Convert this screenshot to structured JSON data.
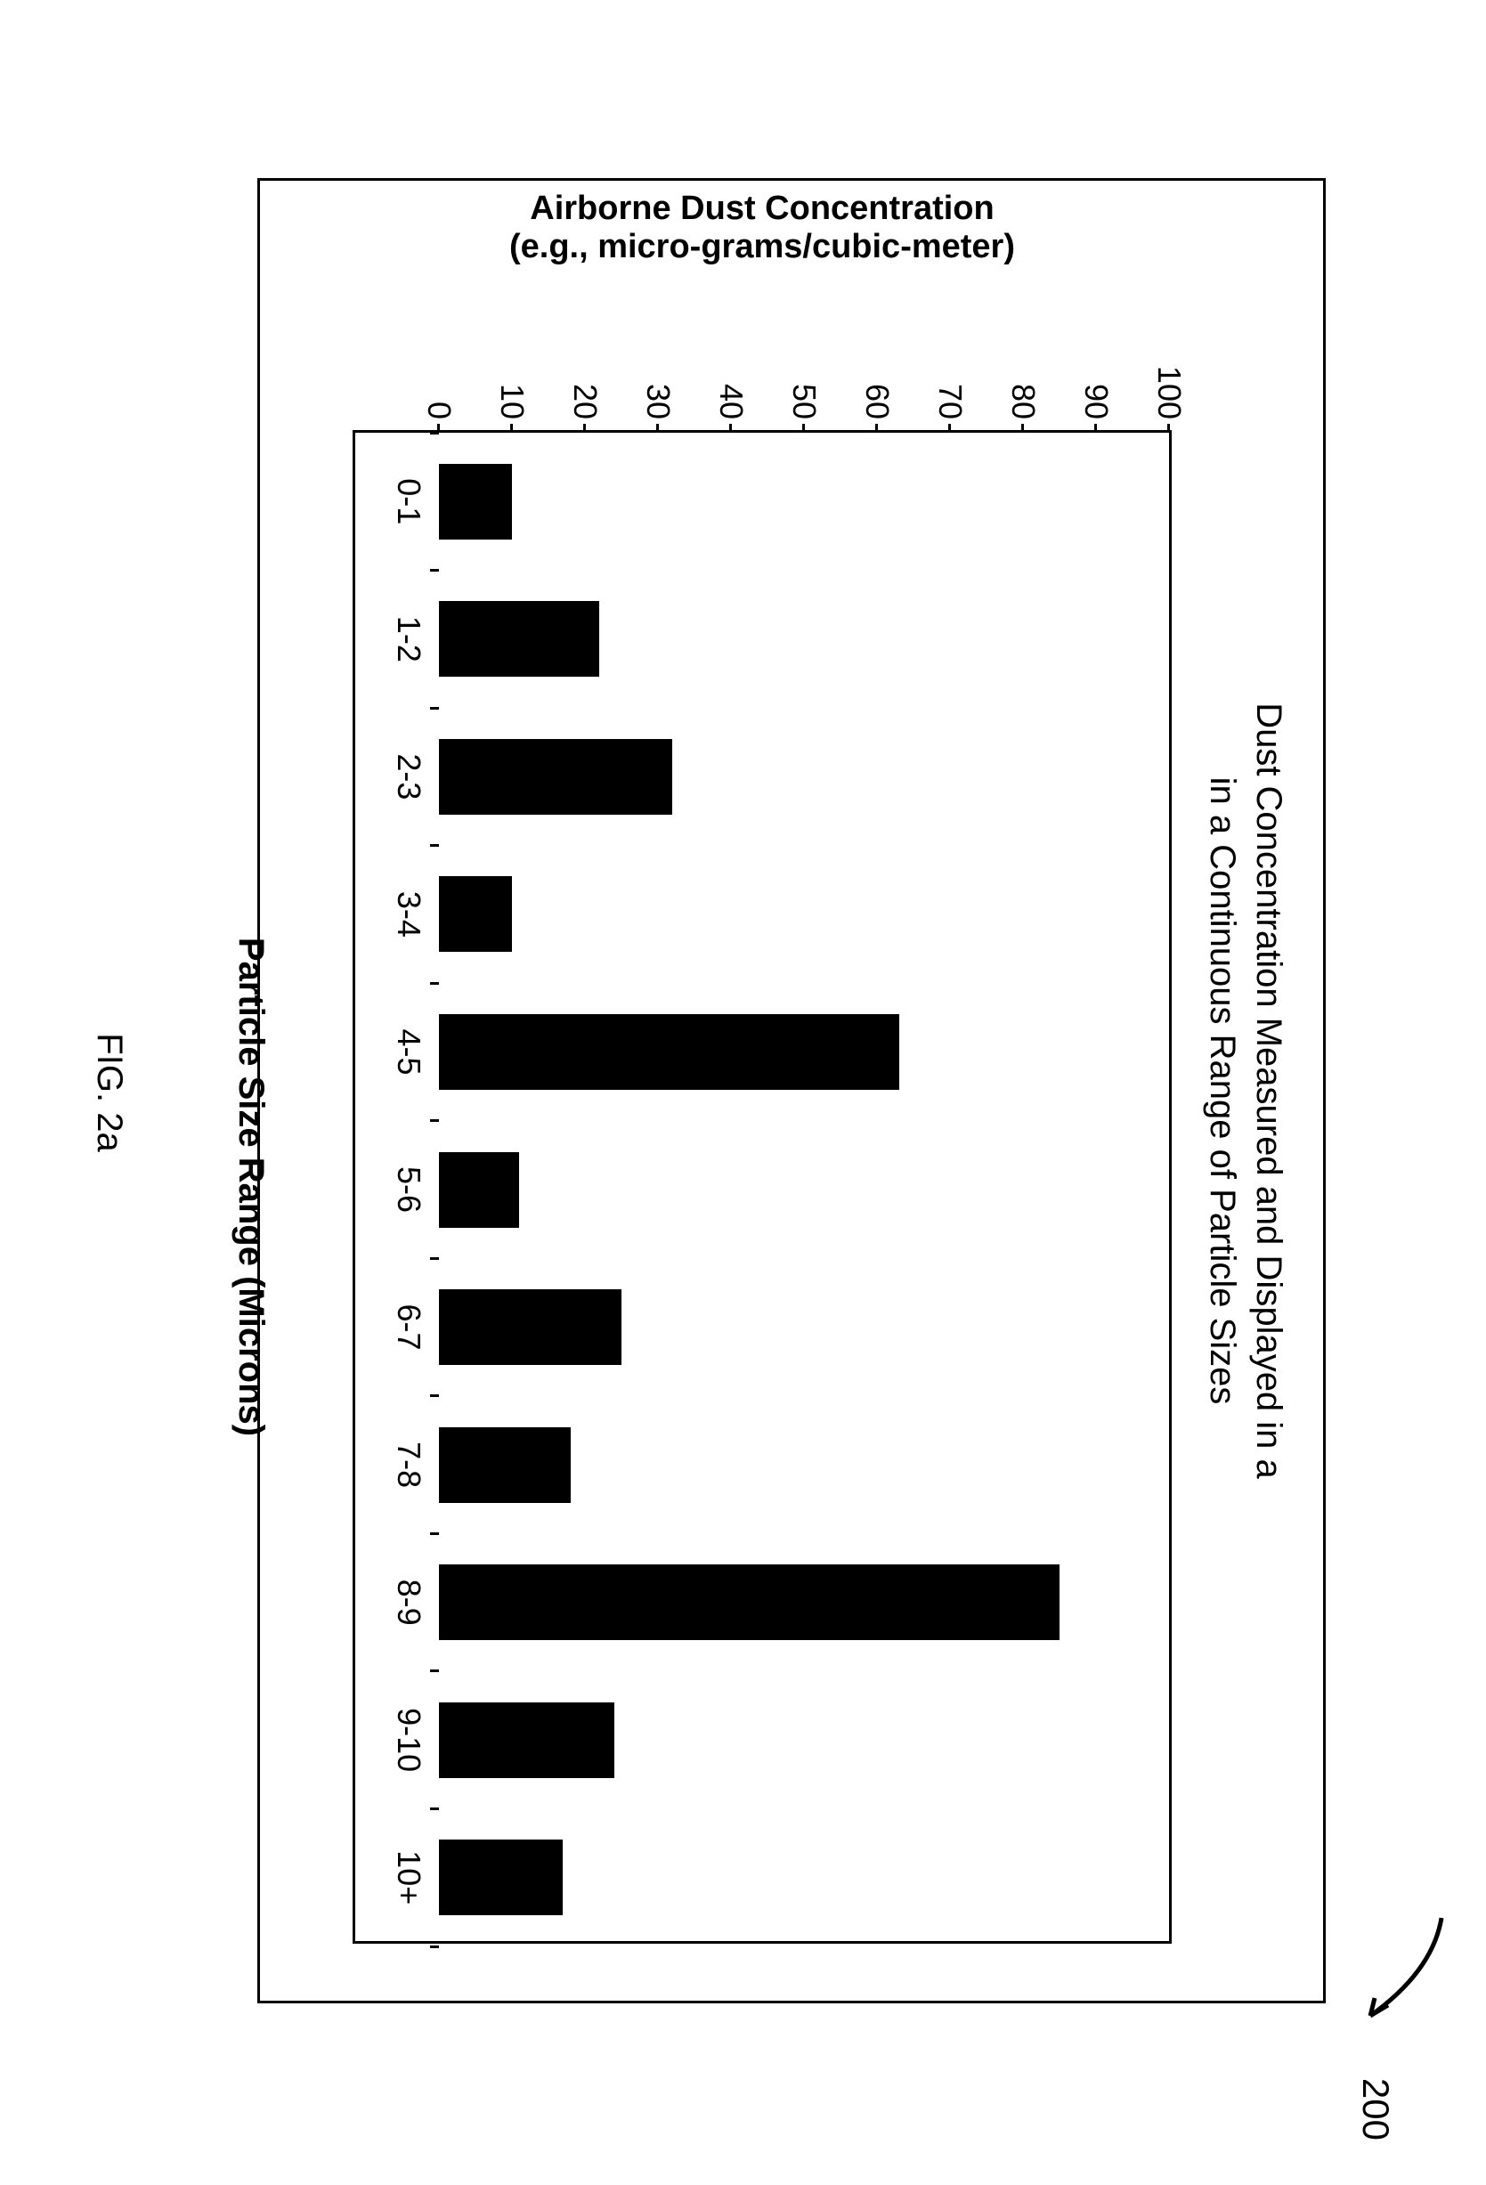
{
  "figure_label": "200",
  "caption": "FIG. 2a",
  "chart": {
    "type": "bar",
    "title_line1": "Dust Concentration Measured and Displayed in a",
    "title_line2": "in a Continuous Range of Particle Sizes",
    "x_axis_label": "Particle Size Range (Microns)",
    "y_axis_label_line1": "Airborne Dust Concentration",
    "y_axis_label_line2": "(e.g., micro-grams/cubic-meter)",
    "categories": [
      "0-1",
      "1-2",
      "2-3",
      "3-4",
      "4-5",
      "5-6",
      "6-7",
      "7-8",
      "8-9",
      "9-10",
      "10+"
    ],
    "values": [
      10,
      22,
      32,
      10,
      63,
      11,
      25,
      18,
      85,
      24,
      17
    ],
    "ylim_min": 0,
    "ylim_max": 100,
    "ytick_step": 10,
    "y_ticks": [
      0,
      10,
      20,
      30,
      40,
      50,
      60,
      70,
      80,
      90,
      100
    ],
    "bar_color": "#000000",
    "background_color": "#ffffff",
    "border_color": "#000000",
    "bar_width_ratio": 0.55,
    "title_fontsize": 40,
    "axis_label_fontsize": 40,
    "tick_label_fontsize": 36
  }
}
